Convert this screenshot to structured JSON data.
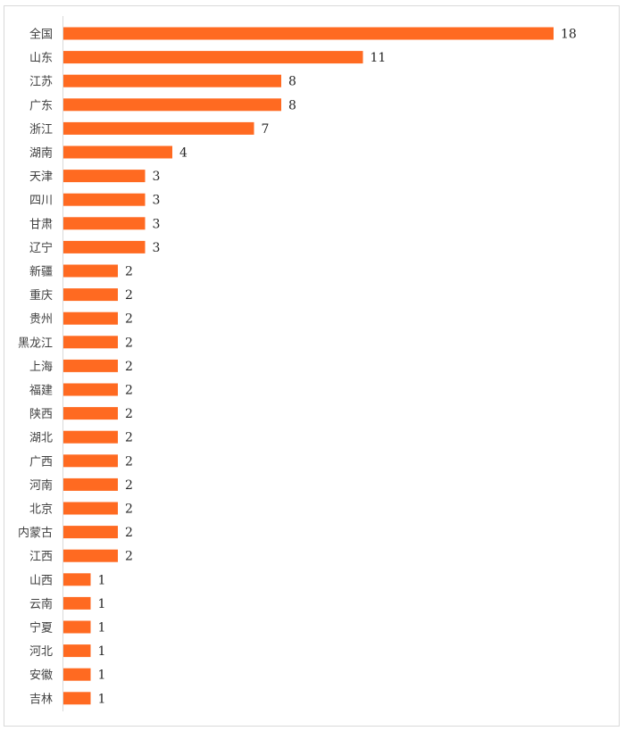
{
  "chart_data": {
    "type": "bar",
    "orientation": "horizontal",
    "title": "",
    "xlabel": "",
    "ylabel": "",
    "categories": [
      "全国",
      "山东",
      "江苏",
      "广东",
      "浙江",
      "湖南",
      "天津",
      "四川",
      "甘肃",
      "辽宁",
      "新疆",
      "重庆",
      "贵州",
      "黑龙江",
      "上海",
      "福建",
      "陕西",
      "湖北",
      "广西",
      "河南",
      "北京",
      "内蒙古",
      "江西",
      "山西",
      "云南",
      "宁夏",
      "河北",
      "安徽",
      "吉林"
    ],
    "values": [
      18,
      11,
      8,
      8,
      7,
      4,
      3,
      3,
      3,
      3,
      2,
      2,
      2,
      2,
      2,
      2,
      2,
      2,
      2,
      2,
      2,
      2,
      2,
      1,
      1,
      1,
      1,
      1,
      1
    ],
    "xlim": [
      0,
      18
    ],
    "grid": false,
    "data_labels": true,
    "bar_color": "#ff6a21",
    "axis_color": "#d9d9d9"
  }
}
